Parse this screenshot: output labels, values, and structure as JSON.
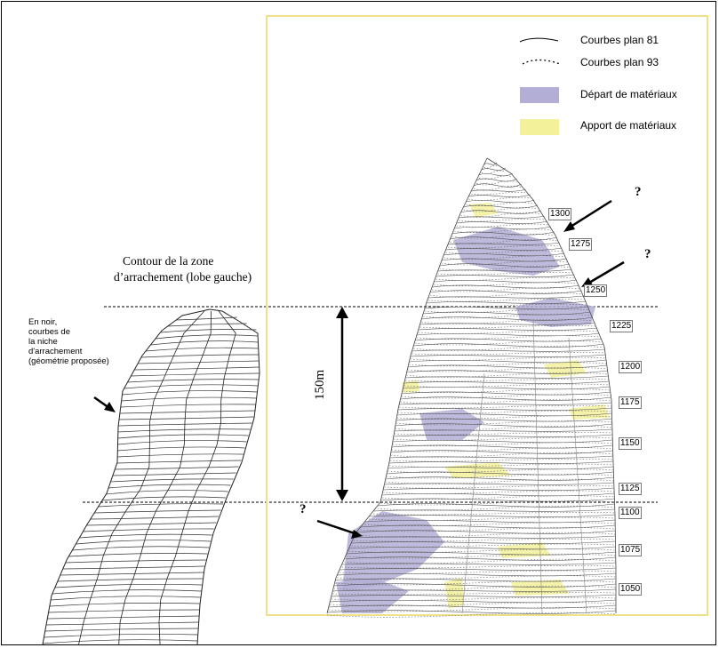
{
  "legend": {
    "items": [
      {
        "label": "Courbes plan 81",
        "kind": "solid-line"
      },
      {
        "label": "Courbes plan 93",
        "kind": "dotted-line"
      },
      {
        "label": "Départ de matériaux",
        "kind": "swatch",
        "color": "#b3aed6"
      },
      {
        "label": "Apport de matériaux",
        "kind": "swatch",
        "color": "#f3f19a"
      }
    ]
  },
  "left_title": {
    "line1": "Contour de la zone",
    "line2": "d’arrachement (lobe gauche)"
  },
  "left_note": {
    "line1": "En noir,",
    "line2": "courbes de",
    "line3": "la niche",
    "line4": "d'arrachement",
    "line5": "(géométrie proposée)"
  },
  "scale": {
    "label": "150m"
  },
  "question_marks": [
    "?",
    "?",
    "?"
  ],
  "elevations": [
    "1300",
    "1275",
    "1250",
    "1225",
    "1200",
    "1175",
    "1150",
    "1125",
    "1100",
    "1075",
    "1050"
  ],
  "colors": {
    "depart": "#b3aed6",
    "apport": "#f3f19a",
    "panel_border": "#efe08a",
    "contour": "#555555",
    "green_contour": "#3f8f3f"
  }
}
